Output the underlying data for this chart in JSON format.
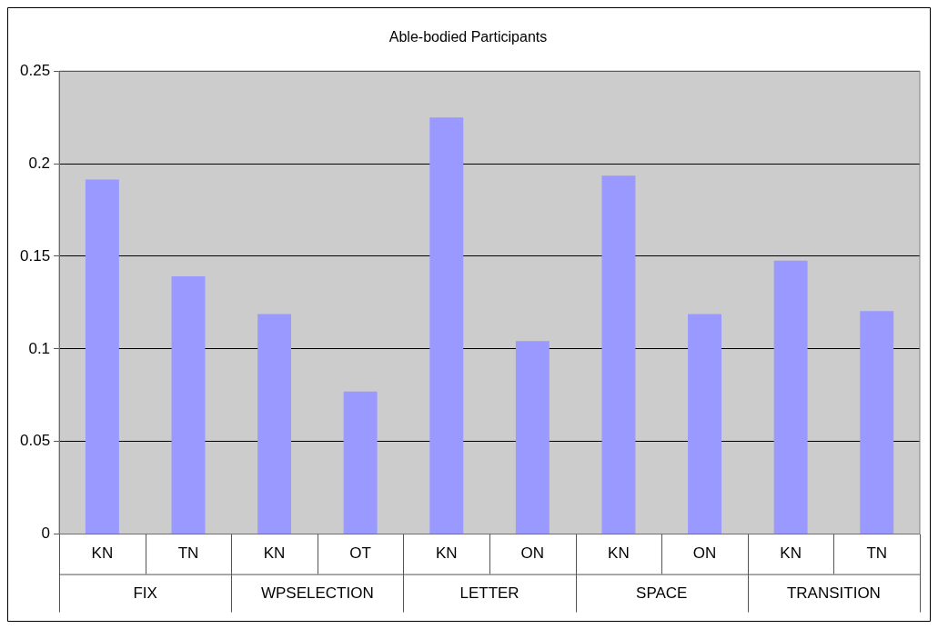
{
  "chart_data": {
    "type": "bar",
    "title": "Able-bodied Participants",
    "categories": [
      "KN",
      "TN",
      "KN",
      "OT",
      "KN",
      "ON",
      "KN",
      "ON",
      "KN",
      "TN"
    ],
    "values": [
      0.1915,
      0.1392,
      0.1188,
      0.077,
      0.2249,
      0.1042,
      0.1935,
      0.1188,
      0.1476,
      0.1204
    ],
    "color": "#9999ff",
    "annotations": [
      "FIX",
      "WPSELECTION",
      "LETTER",
      "SPACE",
      "TRANSITION"
    ],
    "ylim": [
      0,
      0.25
    ],
    "yticks": [
      0,
      0.05,
      0.1,
      0.15,
      0.2,
      0.25
    ],
    "grid": "y",
    "legend": false
  }
}
